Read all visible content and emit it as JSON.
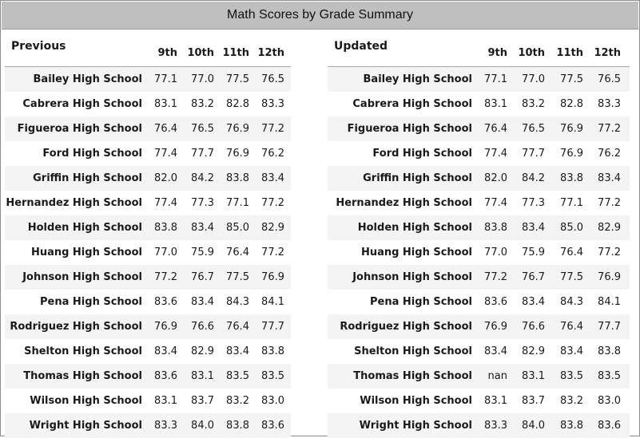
{
  "title": "Math Scores by Grade Summary",
  "columns": [
    "9th",
    "10th",
    "11th",
    "12th"
  ],
  "previous": {
    "label": "Previous",
    "rows": [
      {
        "school": "Bailey High School",
        "values": [
          "77.1",
          "77.0",
          "77.5",
          "76.5"
        ]
      },
      {
        "school": "Cabrera High School",
        "values": [
          "83.1",
          "83.2",
          "82.8",
          "83.3"
        ]
      },
      {
        "school": "Figueroa High School",
        "values": [
          "76.4",
          "76.5",
          "76.9",
          "77.2"
        ]
      },
      {
        "school": "Ford High School",
        "values": [
          "77.4",
          "77.7",
          "76.9",
          "76.2"
        ]
      },
      {
        "school": "Griffin High School",
        "values": [
          "82.0",
          "84.2",
          "83.8",
          "83.4"
        ]
      },
      {
        "school": "Hernandez High School",
        "values": [
          "77.4",
          "77.3",
          "77.1",
          "77.2"
        ]
      },
      {
        "school": "Holden High School",
        "values": [
          "83.8",
          "83.4",
          "85.0",
          "82.9"
        ]
      },
      {
        "school": "Huang High School",
        "values": [
          "77.0",
          "75.9",
          "76.4",
          "77.2"
        ]
      },
      {
        "school": "Johnson High School",
        "values": [
          "77.2",
          "76.7",
          "77.5",
          "76.9"
        ]
      },
      {
        "school": "Pena High School",
        "values": [
          "83.6",
          "83.4",
          "84.3",
          "84.1"
        ]
      },
      {
        "school": "Rodriguez High School",
        "values": [
          "76.9",
          "76.6",
          "76.4",
          "77.7"
        ]
      },
      {
        "school": "Shelton High School",
        "values": [
          "83.4",
          "82.9",
          "83.4",
          "83.8"
        ]
      },
      {
        "school": "Thomas High School",
        "values": [
          "83.6",
          "83.1",
          "83.5",
          "83.5"
        ]
      },
      {
        "school": "Wilson High School",
        "values": [
          "83.1",
          "83.7",
          "83.2",
          "83.0"
        ]
      },
      {
        "school": "Wright High School",
        "values": [
          "83.3",
          "84.0",
          "83.8",
          "83.6"
        ]
      }
    ]
  },
  "updated": {
    "label": "Updated",
    "rows": [
      {
        "school": "Bailey High School",
        "values": [
          "77.1",
          "77.0",
          "77.5",
          "76.5"
        ]
      },
      {
        "school": "Cabrera High School",
        "values": [
          "83.1",
          "83.2",
          "82.8",
          "83.3"
        ]
      },
      {
        "school": "Figueroa High School",
        "values": [
          "76.4",
          "76.5",
          "76.9",
          "77.2"
        ]
      },
      {
        "school": "Ford High School",
        "values": [
          "77.4",
          "77.7",
          "76.9",
          "76.2"
        ]
      },
      {
        "school": "Griffin High School",
        "values": [
          "82.0",
          "84.2",
          "83.8",
          "83.4"
        ]
      },
      {
        "school": "Hernandez High School",
        "values": [
          "77.4",
          "77.3",
          "77.1",
          "77.2"
        ]
      },
      {
        "school": "Holden High School",
        "values": [
          "83.8",
          "83.4",
          "85.0",
          "82.9"
        ]
      },
      {
        "school": "Huang High School",
        "values": [
          "77.0",
          "75.9",
          "76.4",
          "77.2"
        ]
      },
      {
        "school": "Johnson High School",
        "values": [
          "77.2",
          "76.7",
          "77.5",
          "76.9"
        ]
      },
      {
        "school": "Pena High School",
        "values": [
          "83.6",
          "83.4",
          "84.3",
          "84.1"
        ]
      },
      {
        "school": "Rodriguez High School",
        "values": [
          "76.9",
          "76.6",
          "76.4",
          "77.7"
        ]
      },
      {
        "school": "Shelton High School",
        "values": [
          "83.4",
          "82.9",
          "83.4",
          "83.8"
        ]
      },
      {
        "school": "Thomas High School",
        "values": [
          "nan",
          "83.1",
          "83.5",
          "83.5"
        ]
      },
      {
        "school": "Wilson High School",
        "values": [
          "83.1",
          "83.7",
          "83.2",
          "83.0"
        ]
      },
      {
        "school": "Wright High School",
        "values": [
          "83.3",
          "84.0",
          "83.8",
          "83.6"
        ]
      }
    ]
  }
}
